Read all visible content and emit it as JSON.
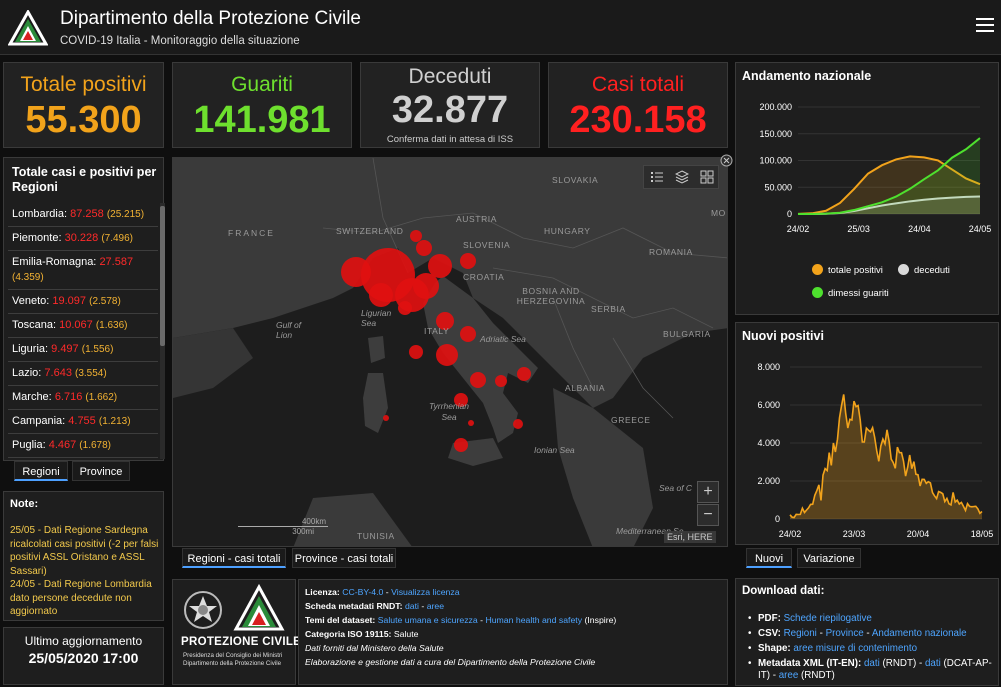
{
  "header": {
    "title": "Dipartimento della Protezione Civile",
    "subtitle": "COVID-19 Italia - Monitoraggio della situazione",
    "menu_icon": "hamburger-menu-icon"
  },
  "stats": {
    "totale_positivi": {
      "label": "Totale positivi",
      "value": "55.300",
      "color": "#f2a31b"
    },
    "guariti": {
      "label": "Guariti",
      "value": "141.981",
      "color": "#6ee02e"
    },
    "deceduti": {
      "label": "Deceduti",
      "value": "32.877",
      "note": "Conferma dati in attesa di ISS",
      "color": "#d0d0d0"
    },
    "casi_totali": {
      "label": "Casi totali",
      "value": "230.158",
      "color": "#ff2020"
    }
  },
  "regions": {
    "title": "Totale casi e positivi per Regioni",
    "items": [
      {
        "name": "Lombardia:",
        "total": "87.258",
        "positivi": "(25.215)"
      },
      {
        "name": "Piemonte:",
        "total": "30.228",
        "positivi": "(7.496)"
      },
      {
        "name": "Emilia-Romagna:",
        "total": "27.587",
        "positivi": "(4.359)"
      },
      {
        "name": "Veneto:",
        "total": "19.097",
        "positivi": "(2.578)"
      },
      {
        "name": "Toscana:",
        "total": "10.067",
        "positivi": "(1.636)"
      },
      {
        "name": "Liguria:",
        "total": "9.497",
        "positivi": "(1.556)"
      },
      {
        "name": "Lazio:",
        "total": "7.643",
        "positivi": "(3.554)"
      },
      {
        "name": "Marche:",
        "total": "6.716",
        "positivi": "(1.662)"
      },
      {
        "name": "Campania:",
        "total": "4.755",
        "positivi": "(1.213)"
      },
      {
        "name": "Puglia:",
        "total": "4.467",
        "positivi": "(1.678)"
      }
    ],
    "tab_regioni": "Regioni",
    "tab_province": "Province"
  },
  "note": {
    "title": "Note:",
    "text1": "25/05 - Dati Regione Sardegna ricalcolati casi positivi (-2 per falsi positivi ASSL Oristano e ASSL Sassari)",
    "text2": "24/05 - Dati Regione Lombardia dato persone decedute non aggiornato"
  },
  "update": {
    "label": "Ultimo aggiornamento",
    "value": "25/05/2020 17:00"
  },
  "map": {
    "labels": {
      "france": "FRANCE",
      "switzerland": "SWITZERLAND",
      "austria": "AUSTRIA",
      "slovakia": "SLOVAKIA",
      "hungary": "HUNGARY",
      "slovenia": "SLOVENIA",
      "croatia": "CROATIA",
      "romania": "ROMANIA",
      "bosnia": "BOSNIA AND HERZEGOVINA",
      "serbia": "SERBIA",
      "bulgaria": "BULGARIA",
      "albania": "ALBANIA",
      "greece": "GREECE",
      "italy": "ITALY",
      "tunisia": "TUNISIA",
      "ligurian": "Ligurian Sea",
      "gulf": "Gulf of Lion",
      "adriatic": "Adriatic Sea",
      "tyrrhenian": "Tyrrhenian Sea",
      "ionian": "Ionian Sea",
      "sea_of": "Sea of C",
      "mediterranean": "Mediterranean Se",
      "mo": "MO"
    },
    "scale_km": "400km",
    "scale_mi": "300mi",
    "credit": "Esri, HERE",
    "zoom_in": "+",
    "zoom_out": "−",
    "tab_regioni": "Regioni - casi totali",
    "tab_province": "Province - casi totali",
    "bubble_color": "#e01010"
  },
  "chart_andamento": {
    "title": "Andamento nazionale",
    "chart_data": {
      "type": "line",
      "x": [
        "24/02",
        "01/03",
        "08/03",
        "15/03",
        "22/03",
        "29/03",
        "05/04",
        "12/04",
        "19/04",
        "26/04",
        "03/05",
        "10/05",
        "17/05",
        "24/05"
      ],
      "xticks": [
        "24/02",
        "25/03",
        "24/04",
        "24/05"
      ],
      "yticks": [
        "0",
        "50.000",
        "100.000",
        "150.000",
        "200.000"
      ],
      "ylim": [
        0,
        200000
      ],
      "series": [
        {
          "name": "totale positivi",
          "color": "#f2a31b",
          "values": [
            200,
            1300,
            6000,
            20600,
            46600,
            75500,
            91200,
            102000,
            107700,
            105800,
            100200,
            83300,
            66500,
            55800
          ]
        },
        {
          "name": "deceduti",
          "color": "#d9d9d9",
          "values": [
            7,
            34,
            366,
            1800,
            5500,
            10800,
            15900,
            19900,
            23700,
            26600,
            28900,
            30600,
            31900,
            32800
          ]
        },
        {
          "name": "dimessi guariti",
          "color": "#4ee02e",
          "values": [
            1,
            83,
            622,
            2300,
            7400,
            14600,
            21800,
            32500,
            47100,
            64900,
            81700,
            105200,
            121000,
            141900
          ]
        }
      ]
    }
  },
  "chart_nuovi": {
    "title": "Nuovi positivi",
    "chart_data": {
      "type": "area",
      "xticks": [
        "24/02",
        "23/03",
        "20/04",
        "18/05"
      ],
      "yticks": [
        "0",
        "2.000",
        "4.000",
        "6.000",
        "8.000"
      ],
      "ylim": [
        0,
        8000
      ],
      "series": [
        {
          "name": "nuovi positivi",
          "color": "#f2a31b",
          "values": [
            221,
            93,
            78,
            250,
            238,
            240,
            566,
            342,
            466,
            587,
            769,
            778,
            1247,
            1492,
            1797,
            977,
            2313,
            2651,
            2547,
            3497,
            2823,
            4000,
            3526,
            4207,
            5322,
            5986,
            6557,
            5560,
            4789,
            5249,
            5210,
            6203,
            5909,
            5974,
            5217,
            4050,
            4053,
            4782,
            4668,
            4585,
            4805,
            4316,
            3599,
            3039,
            3836,
            4204,
            3951,
            4694,
            4092,
            3153,
            2972,
            2667,
            3786,
            3493,
            3491,
            3047,
            2256,
            2729,
            3370,
            2646,
            3021,
            2357,
            2324,
            1739,
            2091,
            2086,
            1872,
            1965,
            1900,
            1389,
            1221,
            1075,
            1444,
            1401,
            1327,
            915,
            1083,
            802,
            744,
            1402,
            888,
            992,
            789,
            875,
            675,
            451,
            813,
            665,
            642,
            652,
            669,
            531,
            300,
            397
          ]
        }
      ]
    },
    "tab_nuovi": "Nuovi",
    "tab_variazione": "Variazione"
  },
  "logos": {
    "line1": "PROTEZIONE CIVILE",
    "line2": "Presidenza del Consiglio dei Ministri",
    "line3": "Dipartimento della Protezione Civile"
  },
  "info": {
    "licenza_label": "Licenza:",
    "licenza_link": "CC-BY-4.0",
    "licenza_link2": "Visualizza licenza",
    "scheda_label": "Scheda metadati RNDT:",
    "scheda_link1": "dati",
    "scheda_link2": "aree",
    "temi_label": "Temi del dataset:",
    "temi_link": "Salute umana e sicurezza",
    "temi_link2": "Human health and safety",
    "temi_suffix": "(Inspire)",
    "iso_label": "Categoria ISO 19115:",
    "iso_value": "Salute",
    "fonte": "Dati forniti dal Ministero della Salute",
    "elaborazione": "Elaborazione e gestione dati a cura del Dipartimento della Protezione Civile"
  },
  "download": {
    "title": "Download dati:",
    "pdf_label": "PDF:",
    "pdf_link": "Schede riepilogative",
    "csv_label": "CSV:",
    "csv_link1": "Regioni",
    "csv_link2": "Province",
    "csv_link3": "Andamento nazionale",
    "shape_label": "Shape:",
    "shape_link": "aree misure di contenimento",
    "meta_label": "Metadata XML (IT-EN):",
    "meta_link1": "dati",
    "meta_suffix1": "(RNDT) -",
    "meta_link2": "dati",
    "meta_suffix2": "(DCAT-AP-IT) -",
    "meta_link3": "aree",
    "meta_suffix3": "(RNDT)"
  }
}
